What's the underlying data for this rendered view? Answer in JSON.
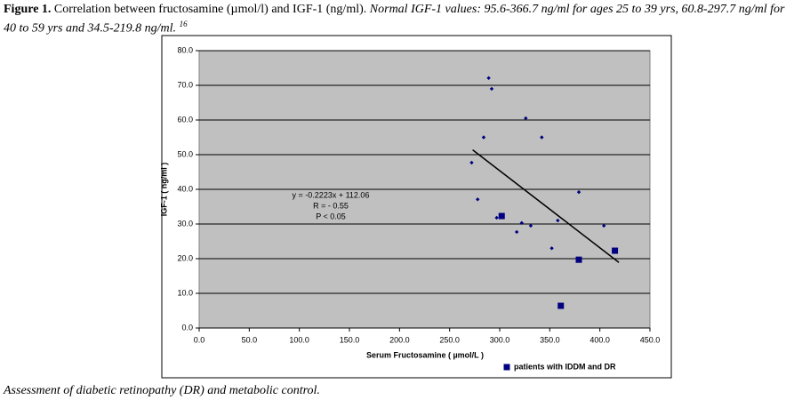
{
  "caption": {
    "label": "Figure 1.",
    "text": "Correlation between fructosamine (µmol/l) and IGF-1 (ng/ml).",
    "note": "Normal IGF-1 values: 95.6-366.7 ng/ml for ages 25 to 39 yrs, 60.8-297.7 ng/ml for 40 to 59 yrs and 34.5-219.8 ng/ml.",
    "ref": "16"
  },
  "footer": "Assessment of diabetic retinopathy (DR) and metabolic control.",
  "chart_data": {
    "type": "scatter",
    "xlabel": "Serum Fructosamine ( µmol/L )",
    "ylabel": "IGF-1 ( ng/ml )",
    "xlim": [
      0,
      450
    ],
    "ylim": [
      0,
      80
    ],
    "xticks": [
      {
        "value": 0,
        "label": "0.0"
      },
      {
        "value": 50,
        "label": "50.0"
      },
      {
        "value": 100,
        "label": "100.0"
      },
      {
        "value": 150,
        "label": "150.0"
      },
      {
        "value": 200,
        "label": "200.0"
      },
      {
        "value": 250,
        "label": "250.0"
      },
      {
        "value": 300,
        "label": "300.0"
      },
      {
        "value": 350,
        "label": "350.0"
      },
      {
        "value": 400,
        "label": "400.0"
      },
      {
        "value": 450,
        "label": "450.0"
      }
    ],
    "yticks": [
      {
        "value": 0,
        "label": "0.0"
      },
      {
        "value": 10,
        "label": "10.0"
      },
      {
        "value": 20,
        "label": "20.0"
      },
      {
        "value": 30,
        "label": "30.0"
      },
      {
        "value": 40,
        "label": "40.0"
      },
      {
        "value": 50,
        "label": "50.0"
      },
      {
        "value": 60,
        "label": "60.0"
      },
      {
        "value": 70,
        "label": "70.0"
      },
      {
        "value": 80,
        "label": "80.0"
      }
    ],
    "grid": true,
    "series": [
      {
        "color": "#000080",
        "marker": "diamond",
        "x": [
          289,
          292,
          326,
          284,
          342,
          272,
          379,
          278,
          297,
          322,
          331,
          317,
          358,
          352,
          404
        ],
        "values": [
          72.1,
          69,
          60.5,
          55,
          55,
          47.7,
          39.2,
          37.1,
          31.8,
          30.3,
          29.5,
          27.7,
          31,
          23,
          29.5
        ]
      },
      {
        "name": "patients with IDDM and DR",
        "color": "#000080",
        "marker": "square",
        "x": [
          302,
          379,
          415,
          361
        ],
        "values": [
          32.3,
          19.7,
          22.3,
          6.4
        ]
      }
    ],
    "trendline": {
      "slope": -0.2223,
      "intercept": 112.06,
      "x": [
        273,
        419
      ],
      "color": "#000000"
    },
    "annotations": [
      "y = -0.2223x + 112.06",
      "R = - 0.55",
      "P < 0.05"
    ]
  }
}
